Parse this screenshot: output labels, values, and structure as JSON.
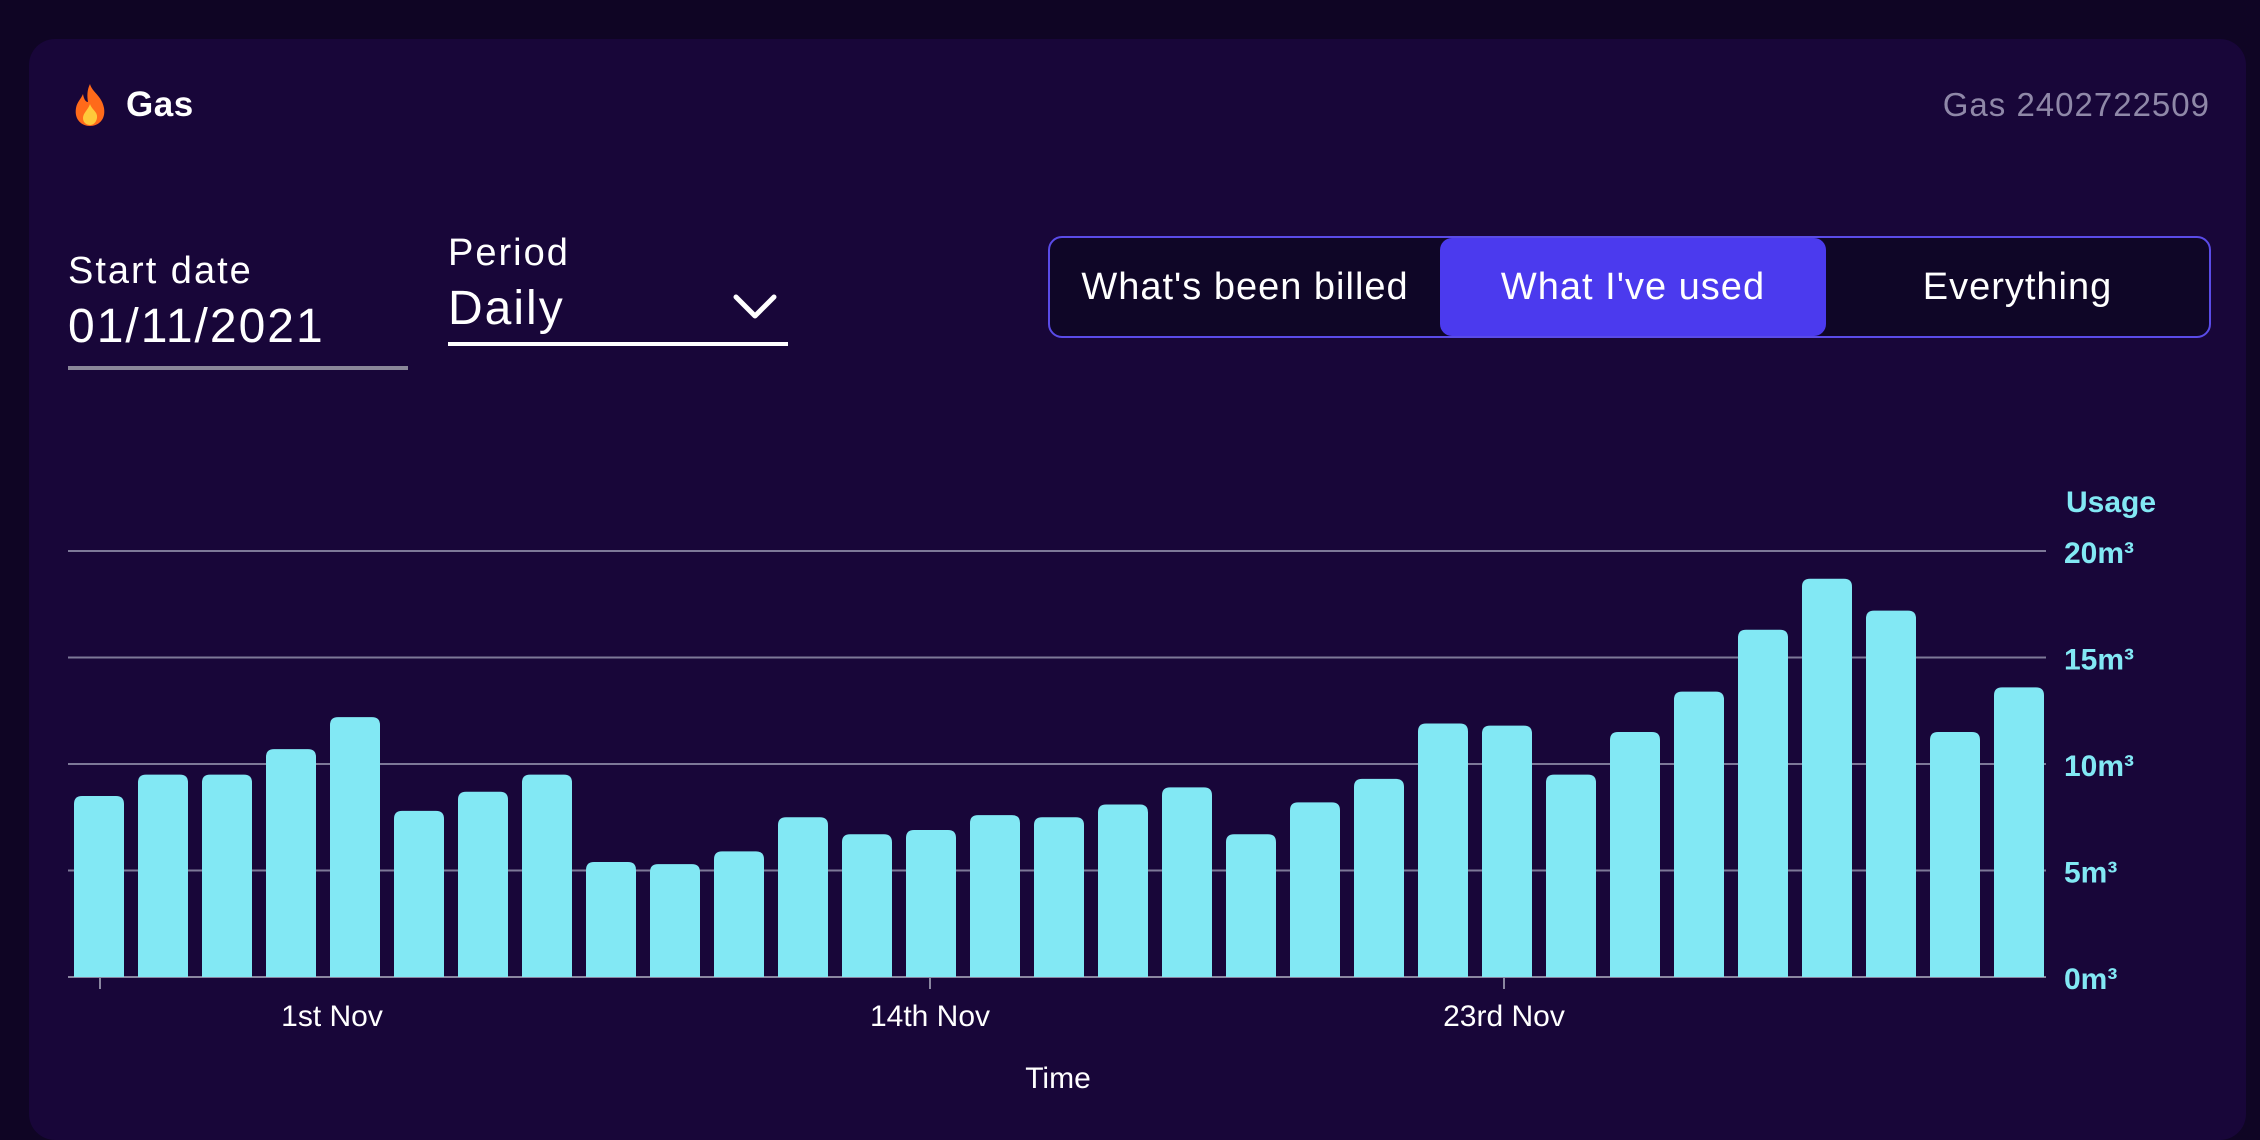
{
  "header": {
    "title": "Gas",
    "meter_label": "Gas 2402722509"
  },
  "filters": {
    "start_date_label": "Start date",
    "start_date_value": "01/11/2021",
    "period_label": "Period",
    "period_value": "Daily"
  },
  "view_toggle": {
    "options": [
      "What's been billed",
      "What I've used",
      "Everything"
    ],
    "selected": "What I've used"
  },
  "colors": {
    "bar": "#82e8f4",
    "accent": "#4b3aee",
    "background": "#180639"
  },
  "chart_data": {
    "type": "bar",
    "ylabel": "Usage",
    "xlabel": "Time",
    "unit": "m³",
    "ylim": [
      0,
      20
    ],
    "y_ticks": [
      "0m³",
      "5m³",
      "10m³",
      "15m³",
      "20m³"
    ],
    "x_tick_labels": [
      "1st Nov",
      "14th Nov",
      "23rd Nov"
    ],
    "grid": true,
    "values": [
      8.5,
      9.5,
      9.5,
      10.7,
      12.2,
      7.8,
      8.7,
      9.5,
      5.4,
      5.3,
      5.9,
      7.5,
      6.7,
      6.9,
      7.6,
      7.5,
      8.1,
      8.9,
      6.7,
      8.2,
      9.3,
      11.9,
      11.8,
      9.5,
      11.5,
      13.4,
      16.3,
      18.7,
      17.2,
      11.5,
      13.6
    ]
  }
}
